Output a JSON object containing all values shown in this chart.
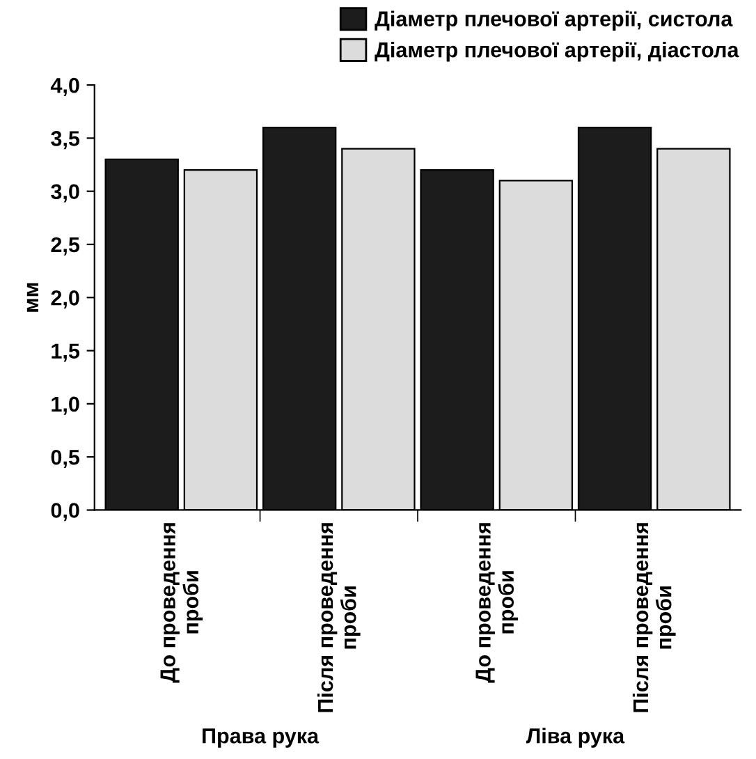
{
  "chart_data": {
    "type": "bar",
    "ylabel": "мм",
    "categories": [
      "До проведення\nпроби",
      "Після проведення\nпроби",
      "До проведення\nпроби",
      "Після проведення\nпроби"
    ],
    "series": [
      {
        "name": "Діаметр плечової артерії, систола",
        "color": "#1c1c1c",
        "values": [
          3.3,
          3.6,
          3.2,
          3.6
        ]
      },
      {
        "name": "Діаметр плечової артерії, діастола",
        "color": "#dcdcdc",
        "values": [
          3.2,
          3.4,
          3.1,
          3.4
        ]
      }
    ],
    "ylim": [
      0,
      4
    ],
    "yticks": [
      {
        "value": 0,
        "label": "0,0"
      },
      {
        "value": 0.5,
        "label": "0,5"
      },
      {
        "value": 1,
        "label": "1,0"
      },
      {
        "value": 1.5,
        "label": "1,5"
      },
      {
        "value": 2,
        "label": "2,0"
      },
      {
        "value": 2.5,
        "label": "2,5"
      },
      {
        "value": 3,
        "label": "3,0"
      },
      {
        "value": 3.5,
        "label": "3,5"
      },
      {
        "value": 4,
        "label": "4,0"
      }
    ],
    "annotations": [
      "Права рука",
      "Ліва рука"
    ],
    "legend": "top right",
    "grid": false
  }
}
